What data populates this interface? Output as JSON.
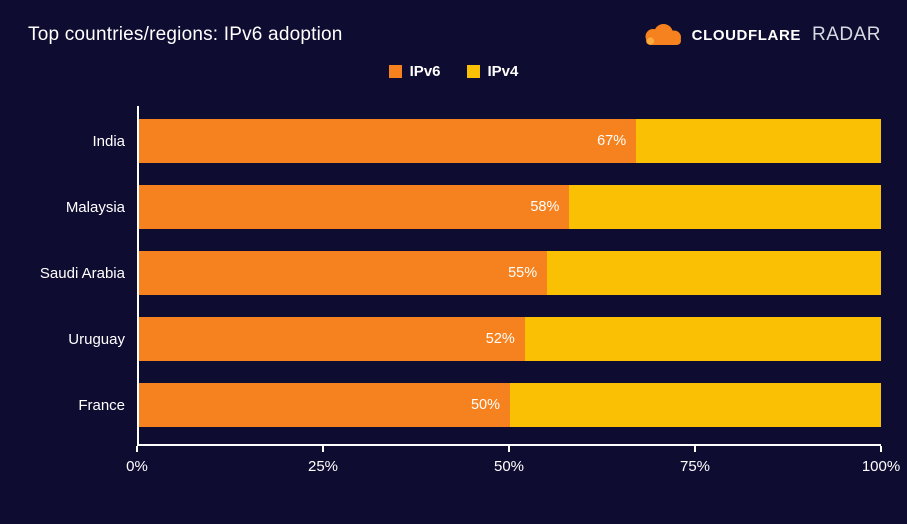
{
  "colors": {
    "background": "#0e0c30",
    "ipv6": "#f6821f",
    "ipv4": "#f9c004",
    "axis": "#ffffff",
    "text": "#ffffff"
  },
  "header": {
    "title": "Top countries/regions: IPv6 adoption",
    "brand": "CLOUDFLARE",
    "product": "RADAR",
    "logo_icon": "cloudflare-cloud"
  },
  "legend": [
    {
      "label": "IPv6",
      "color": "#f6821f"
    },
    {
      "label": "IPv4",
      "color": "#f9c004"
    }
  ],
  "chart_data": {
    "type": "bar",
    "orientation": "horizontal",
    "stacked": true,
    "title": "Top countries/regions: IPv6 adoption",
    "categories": [
      "India",
      "Malaysia",
      "Saudi Arabia",
      "Uruguay",
      "France"
    ],
    "series": [
      {
        "name": "IPv6",
        "color": "#f6821f",
        "values": [
          67,
          58,
          55,
          52,
          50
        ]
      },
      {
        "name": "IPv4",
        "color": "#f9c004",
        "values": [
          33,
          42,
          45,
          48,
          50
        ]
      }
    ],
    "bar_labels": [
      "67%",
      "58%",
      "55%",
      "52%",
      "50%"
    ],
    "x_ticks": [
      "0%",
      "25%",
      "50%",
      "75%",
      "100%"
    ],
    "xlim": [
      0,
      100
    ],
    "legend_position": "top",
    "grid": false
  }
}
